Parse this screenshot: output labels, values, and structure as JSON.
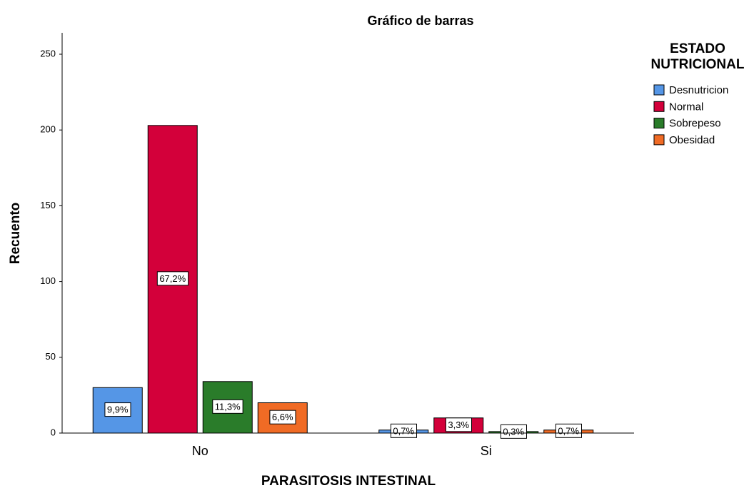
{
  "chart_data": {
    "type": "bar",
    "title": "Gráfico de barras",
    "x_label": "PARASITOSIS INTESTINAL",
    "y_label": "Recuento",
    "legend_title": "ESTADO NUTRICIONAL",
    "categories": [
      "No",
      "Si"
    ],
    "series": [
      {
        "name": "Desnutricion",
        "color": "#5596e6",
        "values": [
          30,
          2
        ],
        "percent_labels": [
          "9,9%",
          "0,7%"
        ]
      },
      {
        "name": "Normal",
        "color": "#d3003a",
        "values": [
          203,
          10
        ],
        "percent_labels": [
          "67,2%",
          "3,3%"
        ]
      },
      {
        "name": "Sobrepeso",
        "color": "#2a7c2a",
        "values": [
          34,
          1
        ],
        "percent_labels": [
          "11,3%",
          "0,3%"
        ]
      },
      {
        "name": "Obesidad",
        "color": "#f06b25",
        "values": [
          20,
          2
        ],
        "percent_labels": [
          "6,6%",
          "0,7%"
        ]
      }
    ],
    "ylim": [
      0,
      250
    ],
    "yticks": [
      0,
      50,
      100,
      150,
      200,
      250
    ],
    "grid": false
  }
}
